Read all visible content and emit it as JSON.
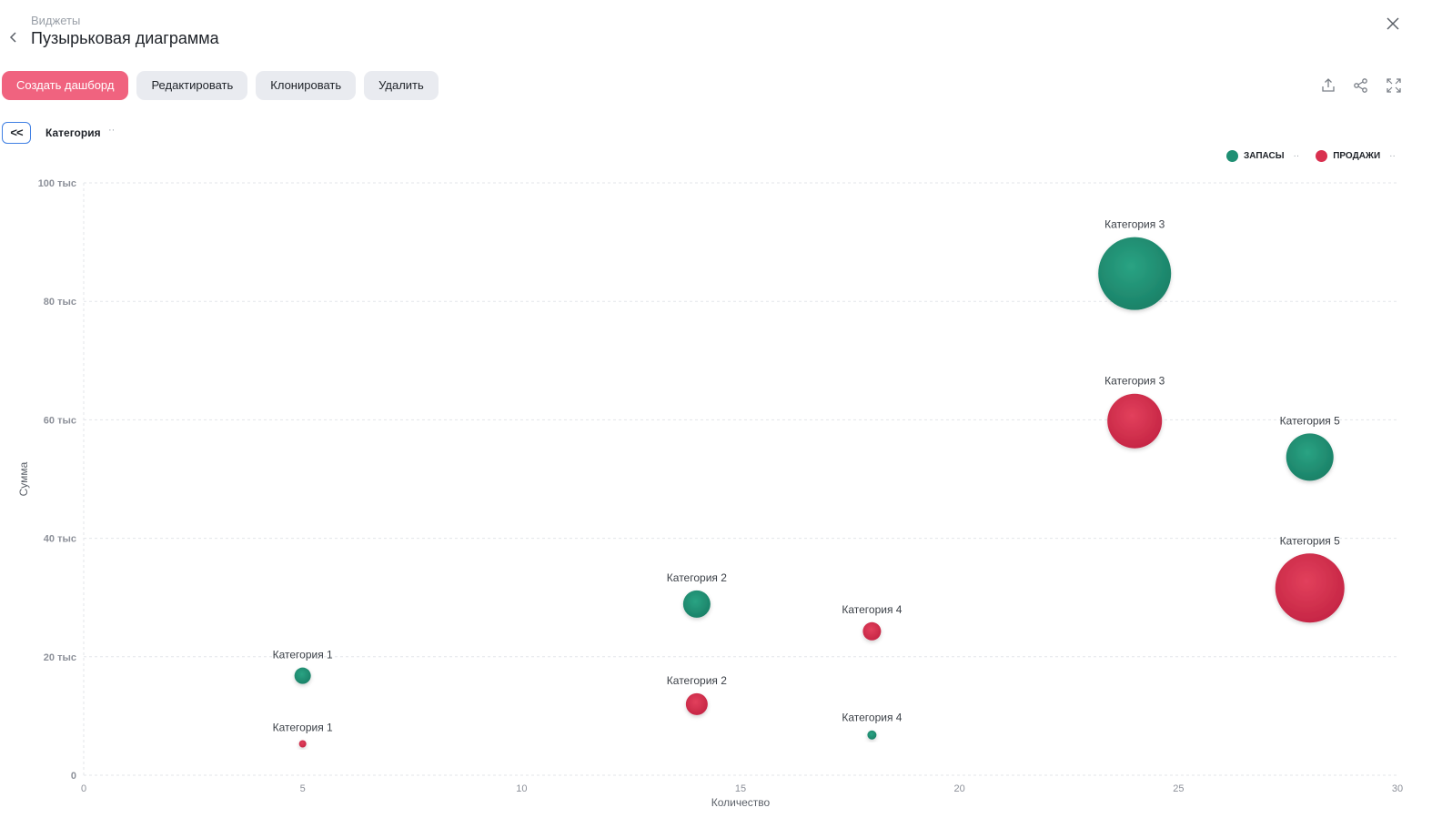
{
  "header": {
    "breadcrumb": "Виджеты",
    "title": "Пузырьковая диаграмма"
  },
  "toolbar": {
    "create_label": "Создать дашборд",
    "edit_label": "Редактировать",
    "clone_label": "Клонировать",
    "delete_label": "Удалить"
  },
  "filter": {
    "collapse_label": "<<",
    "label": "Категория",
    "more": "··"
  },
  "colors": {
    "accent": "#f0637f",
    "stock": "#1f8f73",
    "sales": "#d9304f"
  },
  "icons": [
    "chevron-left-icon",
    "close-icon",
    "export-icon",
    "share-icon",
    "fullscreen-icon"
  ],
  "chart_data": {
    "type": "bubble",
    "xlabel": "Количество",
    "ylabel": "Сумма",
    "xlim": [
      0,
      30
    ],
    "ylim": [
      0,
      100000
    ],
    "x_ticks": [
      "0",
      "5",
      "10",
      "15",
      "20",
      "25",
      "30"
    ],
    "y_ticks": [
      "0",
      "20 тыс",
      "40 тыс",
      "60 тыс",
      "80 тыс",
      "100 тыс"
    ],
    "grid": true,
    "legend_position": "top-right",
    "series": [
      {
        "name": "ЗАПАСЫ",
        "color": "#1f8f73",
        "points": [
          {
            "label": "Категория 1",
            "x": 5,
            "y": 16800,
            "size": 9
          },
          {
            "label": "Категория 2",
            "x": 14,
            "y": 28900,
            "size": 15
          },
          {
            "label": "Категория 3",
            "x": 24,
            "y": 84700,
            "size": 40
          },
          {
            "label": "Категория 4",
            "x": 18,
            "y": 6800,
            "size": 5
          },
          {
            "label": "Категория 5",
            "x": 28,
            "y": 53700,
            "size": 26
          }
        ]
      },
      {
        "name": "ПРОДАЖИ",
        "color": "#d9304f",
        "points": [
          {
            "label": "Категория 1",
            "x": 5,
            "y": 5300,
            "size": 4
          },
          {
            "label": "Категория 2",
            "x": 14,
            "y": 12000,
            "size": 12
          },
          {
            "label": "Категория 3",
            "x": 24,
            "y": 59800,
            "size": 30
          },
          {
            "label": "Категория 4",
            "x": 18,
            "y": 24300,
            "size": 10
          },
          {
            "label": "Категория 5",
            "x": 28,
            "y": 31600,
            "size": 38
          }
        ]
      }
    ]
  }
}
